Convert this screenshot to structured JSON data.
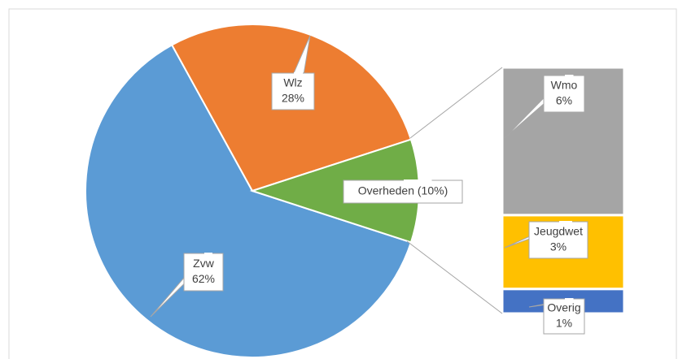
{
  "chart_data": {
    "type": "pie_of_bar",
    "pie": {
      "categories": [
        "Zvw",
        "Wlz",
        "Overheden (10%)"
      ],
      "values": [
        62,
        28,
        10
      ],
      "value_labels": [
        "62%",
        "28%",
        null
      ],
      "colors": [
        "#5b9bd5",
        "#ed7d31",
        "#70ad47"
      ]
    },
    "bar": {
      "categories": [
        "Wmo",
        "Jeugdwet",
        "Overig"
      ],
      "values": [
        6,
        3,
        1
      ],
      "value_labels": [
        "6%",
        "3%",
        "1%"
      ],
      "colors": [
        "#a5a5a5",
        "#ffc000",
        "#4472c4"
      ]
    }
  }
}
